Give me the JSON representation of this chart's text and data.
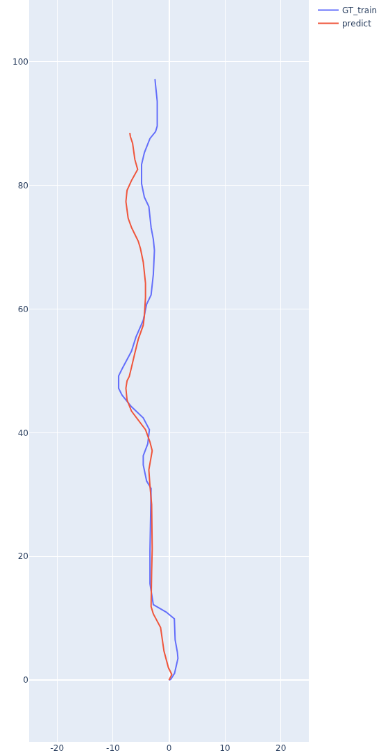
{
  "chart_data": {
    "type": "line",
    "xlim": [
      -25,
      25
    ],
    "ylim": [
      -10,
      110
    ],
    "xticks": [
      -20,
      -10,
      0,
      10,
      20
    ],
    "yticks": [
      0,
      20,
      40,
      60,
      80,
      100
    ],
    "grid": true,
    "legend": "top right",
    "marker": "none",
    "line_style": "solid",
    "series": [
      {
        "name": "GT_train",
        "color": "#636efa",
        "x": [
          0,
          0.3,
          1.0,
          1.6,
          1.5,
          1.1,
          0.96,
          -0.5,
          -2.8,
          -3.4,
          -3.4,
          -3.2,
          -4.0,
          -4.6,
          -4.6,
          -3.8,
          -3.5,
          -4.6,
          -6.7,
          -8.4,
          -9.0,
          -9.0,
          -8.4,
          -6.7,
          -5.9,
          -4.6,
          -4.0,
          -3.2,
          -2.8,
          -2.6,
          -2.8,
          -3.2,
          -3.6,
          -4.4,
          -4.9,
          -4.9,
          -4.4,
          -3.4,
          -2.4,
          -2.1,
          -2.1,
          -2.4,
          -2.5
        ],
        "values": [
          0,
          0.1,
          1.1,
          3.5,
          4.5,
          6.5,
          9.9,
          11.0,
          12.2,
          15.6,
          20.9,
          31.0,
          32.2,
          34.8,
          36.3,
          38.2,
          40.5,
          42.4,
          44.2,
          46.1,
          47.2,
          49.2,
          50.3,
          53.2,
          55.5,
          58.2,
          60.8,
          62.3,
          65.6,
          69.5,
          71.3,
          73.2,
          76.6,
          78.1,
          80.3,
          83.4,
          85.3,
          87.6,
          88.7,
          89.6,
          93.6,
          96.2,
          97.2
        ]
      },
      {
        "name": "predict",
        "color": "#ef553b",
        "x": [
          0,
          0.5,
          -0.1,
          -0.9,
          -1.5,
          -2.8,
          -3.2,
          -3.1,
          -3.0,
          -3.1,
          -3.4,
          -3.6,
          -3.0,
          -3.4,
          -4.2,
          -6.7,
          -7.5,
          -7.7,
          -7.5,
          -7.1,
          -6.7,
          -6.1,
          -5.5,
          -4.6,
          -4.4,
          -4.2,
          -4.2,
          -4.6,
          -5.1,
          -5.5,
          -6.1,
          -6.7,
          -7.3,
          -7.7,
          -7.5,
          -6.7,
          -5.6,
          -6.1,
          -6.5,
          -6.9,
          -7.0
        ],
        "values": [
          0,
          0.9,
          2.0,
          4.7,
          8.5,
          10.7,
          11.9,
          17.5,
          21.2,
          28.4,
          31.4,
          34.0,
          37.1,
          38.5,
          40.5,
          43.5,
          45.3,
          47.2,
          48.4,
          49.1,
          50.6,
          52.9,
          55.1,
          57.4,
          58.9,
          61.9,
          64.2,
          67.6,
          69.8,
          71.0,
          72.1,
          73.2,
          74.7,
          77.4,
          79.2,
          80.8,
          82.6,
          84.2,
          86.8,
          87.9,
          88.5
        ]
      }
    ]
  }
}
